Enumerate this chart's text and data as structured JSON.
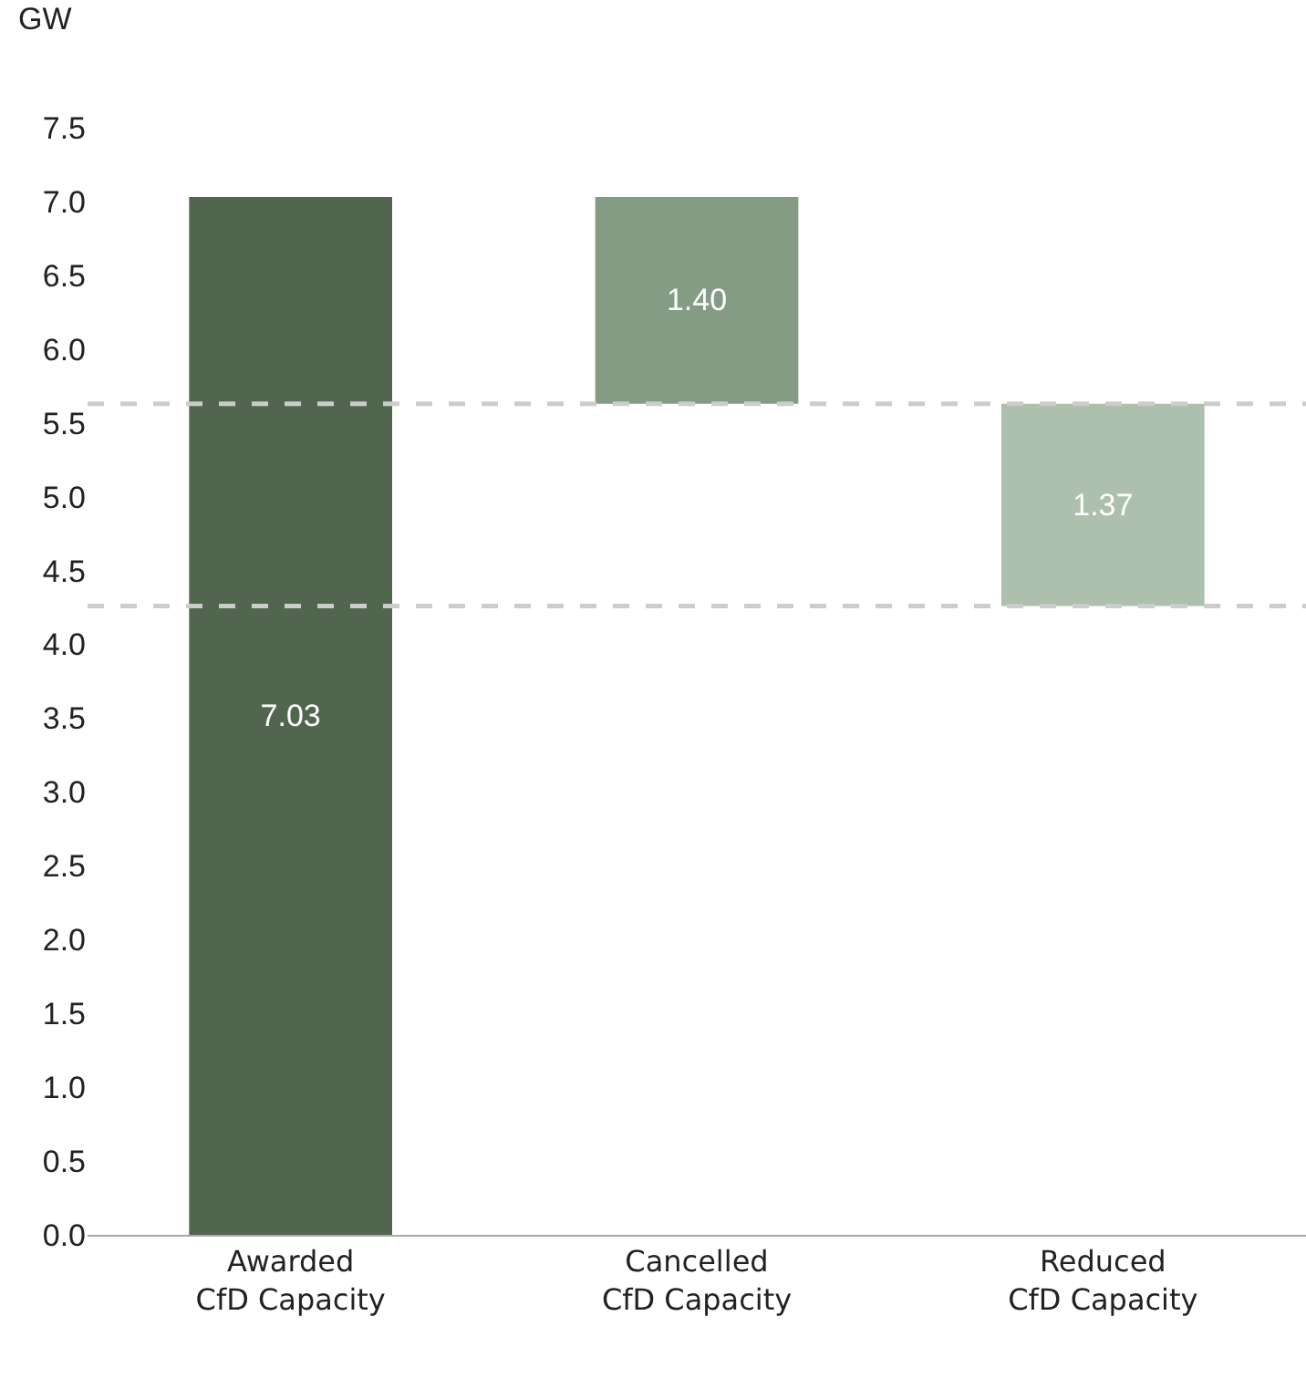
{
  "chart_data": {
    "type": "bar",
    "ylabel": "GW",
    "categories": [
      "Awarded\nCfD Capacity",
      "Cancelled\nCfD Capacity",
      "Reduced\nCfD Capacity"
    ],
    "values": [
      7.03,
      1.4,
      1.37
    ],
    "base": [
      0,
      5.63,
      4.26
    ],
    "colors": [
      "#52664f",
      "#849c84",
      "#adbfad"
    ],
    "value_labels": [
      "7.03",
      "1.40",
      "1.37"
    ],
    "ylim": [
      0,
      7.5
    ],
    "yticks": [
      {
        "value": 0,
        "label": "0.0"
      },
      {
        "value": 0.5,
        "label": "0.5"
      },
      {
        "value": 1,
        "label": "1.0"
      },
      {
        "value": 1.5,
        "label": "1.5"
      },
      {
        "value": 2,
        "label": "2.0"
      },
      {
        "value": 2.5,
        "label": "2.5"
      },
      {
        "value": 3,
        "label": "3.0"
      },
      {
        "value": 3.5,
        "label": "3.5"
      },
      {
        "value": 4,
        "label": "4.0"
      },
      {
        "value": 4.5,
        "label": "4.5"
      },
      {
        "value": 5,
        "label": "5.0"
      },
      {
        "value": 5.5,
        "label": "5.5"
      },
      {
        "value": 6,
        "label": "6.0"
      },
      {
        "value": 6.5,
        "label": "6.5"
      },
      {
        "value": 7,
        "label": "7.0"
      },
      {
        "value": 7.5,
        "label": "7.5"
      }
    ],
    "ref_lines": [
      {
        "axis": "y",
        "value": 5.63,
        "color": "#cccccc",
        "line_style": "dashed"
      },
      {
        "axis": "y",
        "value": 4.26,
        "color": "#cccccc",
        "line_style": "dashed"
      }
    ]
  }
}
